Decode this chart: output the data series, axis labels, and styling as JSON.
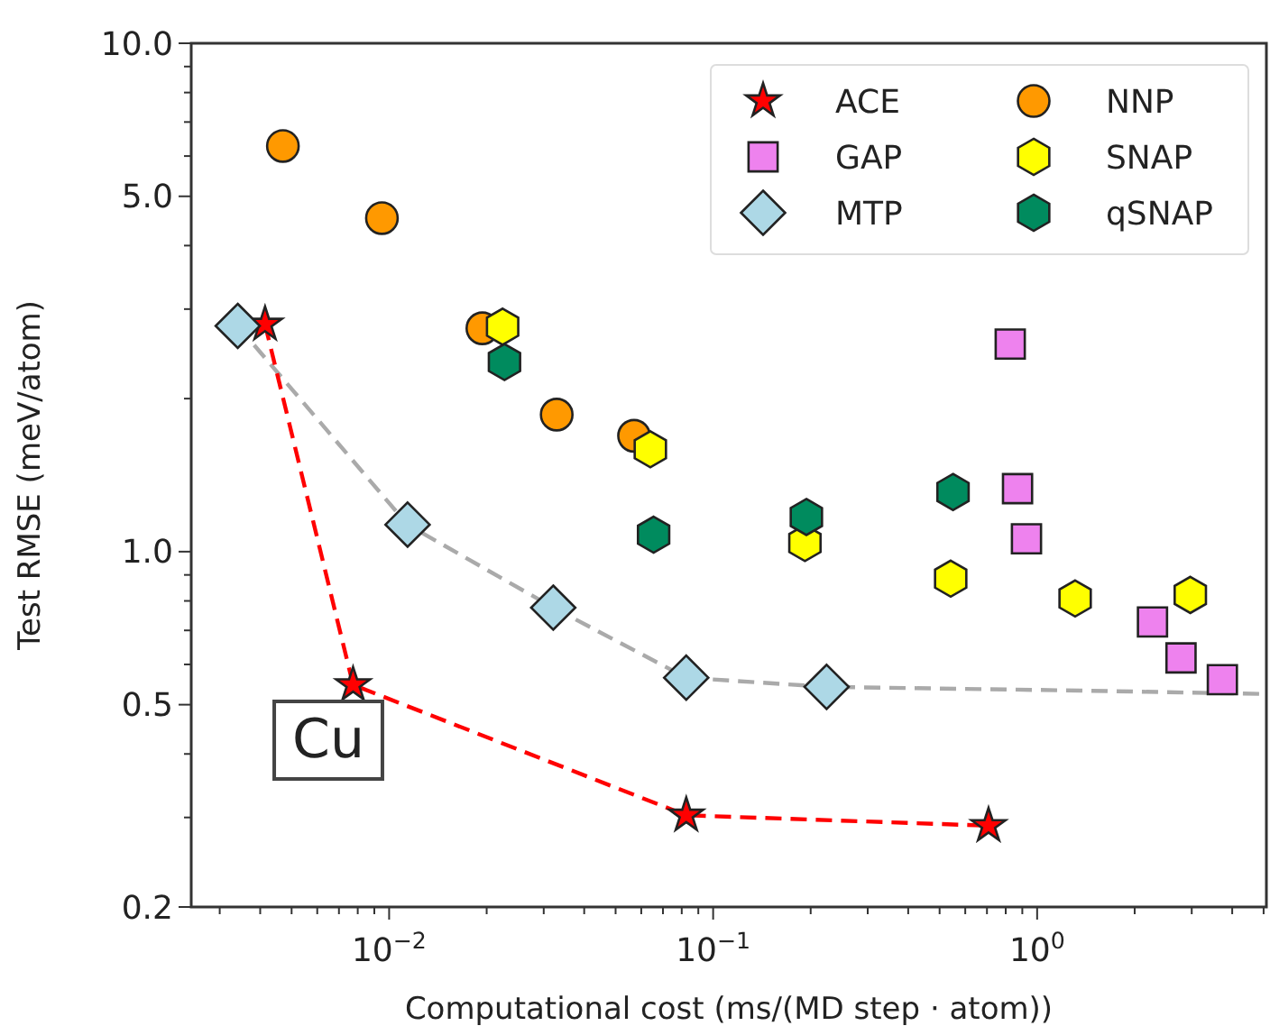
{
  "chart_data": {
    "type": "scatter",
    "xlabel": "Computational cost (ms/(MD step · atom))",
    "ylabel": "Test RMSE (meV/atom)",
    "log": "xy",
    "grid": false,
    "legend": "top right",
    "annotations": [
      "Cu"
    ],
    "xlim": [
      0.00245,
      5.1
    ],
    "ylim": [
      0.2,
      10
    ],
    "xticks": [
      {
        "value": 0.003,
        "label": null
      },
      {
        "value": 0.004,
        "label": null
      },
      {
        "value": 0.005,
        "label": null
      },
      {
        "value": 0.006,
        "label": null
      },
      {
        "value": 0.007,
        "label": null
      },
      {
        "value": 0.008,
        "label": null
      },
      {
        "value": 0.009,
        "label": null
      },
      {
        "value": 0.01,
        "label": "10$^{−2}$"
      },
      {
        "value": 0.02,
        "label": null
      },
      {
        "value": 0.03,
        "label": null
      },
      {
        "value": 0.04,
        "label": null
      },
      {
        "value": 0.05,
        "label": null
      },
      {
        "value": 0.06,
        "label": null
      },
      {
        "value": 0.07,
        "label": null
      },
      {
        "value": 0.08,
        "label": null
      },
      {
        "value": 0.09,
        "label": null
      },
      {
        "value": 0.1,
        "label": "10$^{−1}$"
      },
      {
        "value": 0.2,
        "label": null
      },
      {
        "value": 0.3,
        "label": null
      },
      {
        "value": 0.4,
        "label": null
      },
      {
        "value": 0.5,
        "label": null
      },
      {
        "value": 0.6,
        "label": null
      },
      {
        "value": 0.7,
        "label": null
      },
      {
        "value": 0.8,
        "label": null
      },
      {
        "value": 0.9,
        "label": null
      },
      {
        "value": 1,
        "label": "10$^{0}$"
      },
      {
        "value": 2,
        "label": null
      },
      {
        "value": 3,
        "label": null
      },
      {
        "value": 4,
        "label": null
      },
      {
        "value": 5,
        "label": null
      }
    ],
    "yticks": [
      {
        "value": 0.2,
        "label": "0.2"
      },
      {
        "value": 0.3,
        "label": null
      },
      {
        "value": 0.4,
        "label": null
      },
      {
        "value": 0.5,
        "label": "0.5"
      },
      {
        "value": 0.6,
        "label": null
      },
      {
        "value": 0.7,
        "label": null
      },
      {
        "value": 0.8,
        "label": null
      },
      {
        "value": 0.9,
        "label": null
      },
      {
        "value": 1,
        "label": "1.0"
      },
      {
        "value": 2,
        "label": null
      },
      {
        "value": 3,
        "label": null
      },
      {
        "value": 4,
        "label": null
      },
      {
        "value": 5,
        "label": "5.0"
      },
      {
        "value": 6,
        "label": null
      },
      {
        "value": 7,
        "label": null
      },
      {
        "value": 8,
        "label": null
      },
      {
        "value": 9,
        "label": null
      },
      {
        "value": 10,
        "label": "10.0"
      }
    ],
    "series": [
      {
        "type": "line",
        "color": "#aaaaaa",
        "line_style": "dashed",
        "marker": "none",
        "x": [
          0.00341,
          0.0114,
          0.0321,
          0.0826,
          0.224,
          1.36,
          4.89
        ],
        "values": [
          2.78,
          1.13,
          0.776,
          0.565,
          0.542,
          0.533,
          0.525
        ]
      },
      {
        "type": "line",
        "color": "#ff0000",
        "line_style": "dashed",
        "marker": "none",
        "x": [
          0.00414,
          0.00774,
          0.0826,
          0.708
        ],
        "values": [
          2.8,
          0.547,
          0.303,
          0.289
        ]
      },
      {
        "name": "ACE",
        "color": "#ff0000",
        "marker": "star",
        "x": [
          0.00414,
          0.00774,
          0.0826,
          0.708
        ],
        "values": [
          2.8,
          0.547,
          0.303,
          0.289
        ]
      },
      {
        "name": "GAP",
        "color": "#ee82ee",
        "marker": "square",
        "x": [
          0.826,
          0.87,
          0.927,
          2.27,
          2.78,
          3.73
        ],
        "values": [
          2.56,
          1.33,
          1.06,
          0.727,
          0.618,
          0.56
        ]
      },
      {
        "name": "MTP",
        "color": "#add8e6",
        "marker": "diamond",
        "x": [
          0.00341,
          0.0114,
          0.0321,
          0.0826,
          0.224
        ],
        "values": [
          2.78,
          1.13,
          0.776,
          0.565,
          0.542
        ]
      },
      {
        "name": "NNP",
        "color": "#ff9900",
        "marker": "circle",
        "x": [
          0.0047,
          0.0095,
          0.0194,
          0.0329,
          0.057
        ],
        "values": [
          6.28,
          4.53,
          2.75,
          1.86,
          1.69
        ]
      },
      {
        "name": "SNAP",
        "color": "#ffff00",
        "x": [
          0.0224,
          0.064,
          0.192,
          0.541,
          1.31,
          2.97
        ],
        "values": [
          2.77,
          1.59,
          1.04,
          0.885,
          0.809,
          0.822
        ]
      },
      {
        "name": "qSNAP",
        "color": "#008b5e",
        "x": [
          0.0227,
          0.0655,
          0.194,
          0.55
        ],
        "values": [
          2.36,
          1.08,
          1.17,
          1.31
        ]
      }
    ]
  }
}
